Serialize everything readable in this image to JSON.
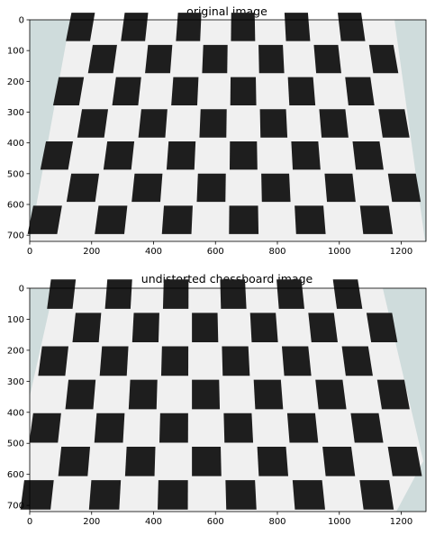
{
  "chart_data": [
    {
      "type": "image",
      "title": "original image",
      "xlim": [
        0,
        1280
      ],
      "ylim": [
        720,
        0
      ],
      "xticks": [
        0,
        200,
        400,
        600,
        800,
        1000,
        1200
      ],
      "yticks": [
        0,
        100,
        200,
        300,
        400,
        500,
        600,
        700
      ],
      "xticklabels": [
        "0",
        "200",
        "400",
        "600",
        "800",
        "1000",
        "1200"
      ],
      "yticklabels": [
        "0",
        "100",
        "200",
        "300",
        "400",
        "500",
        "600",
        "700"
      ],
      "content": "photograph of a black and white chessboard pattern, perspective distorted",
      "background_color": "#cfdcdc"
    },
    {
      "type": "image",
      "title": "undistorted chessboard image",
      "xlim": [
        0,
        1280
      ],
      "ylim": [
        720,
        0
      ],
      "xticks": [
        0,
        200,
        400,
        600,
        800,
        1000,
        1200
      ],
      "yticks": [
        0,
        100,
        200,
        300,
        400,
        500,
        600,
        700
      ],
      "xticklabels": [
        "0",
        "200",
        "400",
        "600",
        "800",
        "1000",
        "1200"
      ],
      "yticklabels": [
        "0",
        "100",
        "200",
        "300",
        "400",
        "500",
        "600",
        "700"
      ],
      "content": "undistorted chessboard photograph",
      "background_color": "#cfdcdc"
    }
  ]
}
